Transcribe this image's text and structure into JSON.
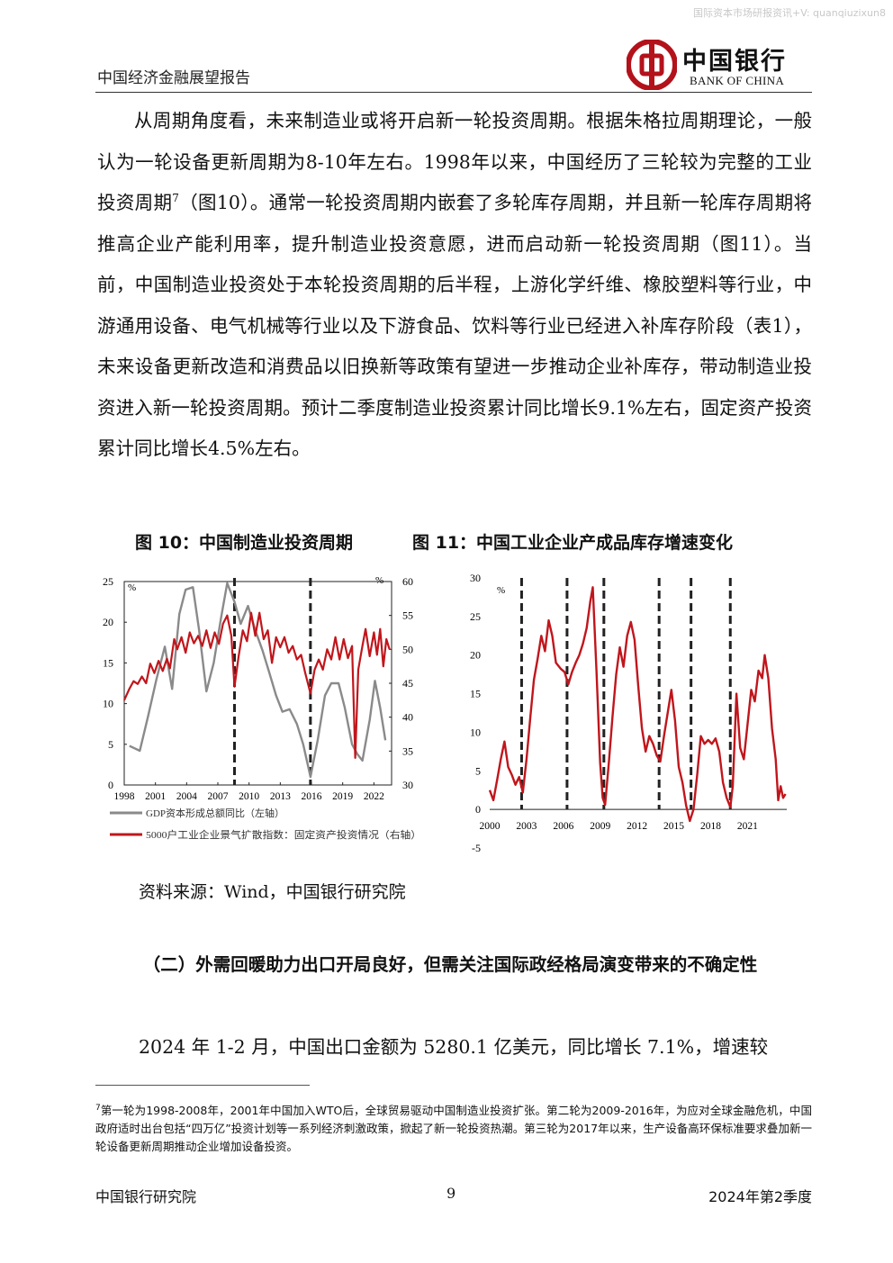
{
  "header": {
    "watermark": "国际资本市场研报资讯+V: quanqiuzixun8",
    "title": "中国经济金融展望报告",
    "logo_cn": "中国银行",
    "logo_en": "BANK OF CHINA"
  },
  "body": {
    "para1": "从周期角度看，未来制造业或将开启新一轮投资周期。根据朱格拉周期理论，一般认为一轮设备更新周期为8-10年左右。1998年以来，中国经历了三轮较为完整的工业投资周期",
    "para1_sup": "7",
    "para1_rest": "（图10）。通常一轮投资周期内嵌套了多轮库存周期，并且新一轮库存周期将推高企业产能利用率，提升制造业投资意愿，进而启动新一轮投资周期（图11）。当前，中国制造业投资处于本轮投资周期的后半程，上游化学纤维、橡胶塑料等行业，中游通用设备、电气机械等行业以及下游食品、饮料等行业已经进入补库存阶段（表1），未来设备更新改造和消费品以旧换新等政策有望进一步推动企业补库存，带动制造业投资进入新一轮投资周期。预计二季度制造业投资累计同比增长9.1%左右，固定资产投资累计同比增长4.5%左右。"
  },
  "figures": {
    "fig10_title": "图 10：中国制造业投资周期",
    "fig11_title": "图 11：中国工业企业产成品库存增速变化",
    "source": "资料来源：Wind，中国银行研究院"
  },
  "section": {
    "heading": "（二）外需回暖助力出口开局良好，但需关注国际政经格局演变带来的不确定性",
    "para2": "2024 年 1-2 月，中国出口金额为 5280.1 亿美元，同比增长 7.1%，增速较"
  },
  "footnote": {
    "mark": "7",
    "text": "第一轮为1998-2008年，2001年中国加入WTO后，全球贸易驱动中国制造业投资扩张。第二轮为2009-2016年，为应对全球金融危机，中国政府适时出台包括“四万亿”投资计划等一系列经济刺激政策，掀起了新一轮投资热潮。第三轮为2017年以来，生产设备高环保标准要求叠加新一轮设备更新周期推动企业增加设备投资。"
  },
  "footer": {
    "left": "中国银行研究院",
    "page": "9",
    "right": "2024年第2季度"
  },
  "colors": {
    "red": "#c0161c",
    "gray": "#8a8a8a"
  },
  "chart_data": [
    {
      "type": "line",
      "id": "fig10",
      "x_ticks": [
        "1998",
        "2001",
        "2004",
        "2007",
        "2010",
        "2013",
        "2016",
        "2019",
        "2022"
      ],
      "y_left_ticks": [
        "0",
        "5",
        "10",
        "15",
        "20",
        "25"
      ],
      "y_right_ticks": [
        "30",
        "35",
        "40",
        "45",
        "50",
        "55",
        "60"
      ],
      "y_left_unit": "%",
      "y_right_unit": "%",
      "ylim_left": [
        0,
        25
      ],
      "ylim_right": [
        30,
        60
      ],
      "xlim": [
        1998,
        2023.7
      ],
      "cycle_lines": [
        2008.6,
        2015.9
      ],
      "series": [
        {
          "name": "GDP资本形成总额同比（左轴）",
          "axis": "left",
          "color": "#8a8a8a",
          "points": [
            [
              1998.5,
              4.8
            ],
            [
              1999.5,
              4.2
            ],
            [
              2000.3,
              8.5
            ],
            [
              2001.1,
              13
            ],
            [
              2001.9,
              17
            ],
            [
              2002.6,
              11.8
            ],
            [
              2003.3,
              21
            ],
            [
              2003.9,
              24.0
            ],
            [
              2004.6,
              24.3
            ],
            [
              2005.2,
              19
            ],
            [
              2005.9,
              11.5
            ],
            [
              2006.6,
              15
            ],
            [
              2007.3,
              20.5
            ],
            [
              2007.9,
              24.8
            ],
            [
              2008.6,
              22.5
            ],
            [
              2009.2,
              19.8
            ],
            [
              2009.9,
              22
            ],
            [
              2010.6,
              19
            ],
            [
              2011.3,
              16.5
            ],
            [
              2011.9,
              14
            ],
            [
              2012.6,
              11
            ],
            [
              2013.2,
              9
            ],
            [
              2013.9,
              9.3
            ],
            [
              2014.6,
              7.5
            ],
            [
              2015.2,
              5
            ],
            [
              2015.9,
              1.0
            ],
            [
              2016.6,
              5.5
            ],
            [
              2017.3,
              11
            ],
            [
              2017.9,
              12.5
            ],
            [
              2018.6,
              12.5
            ],
            [
              2019.2,
              9.5
            ],
            [
              2019.9,
              5
            ],
            [
              2020.4,
              3.8
            ],
            [
              2020.9,
              3.0
            ],
            [
              2021.6,
              8
            ],
            [
              2022.1,
              12.8
            ],
            [
              2022.6,
              9.5
            ],
            [
              2023.1,
              5.5
            ]
          ]
        },
        {
          "name": "5000户工业企业景气扩散指数：固定资产投资情况（右轴）",
          "axis": "right",
          "color": "#c0161c",
          "points": [
            [
              1998.0,
              42.5
            ],
            [
              1998.5,
              44.2
            ],
            [
              1998.9,
              45.3
            ],
            [
              1999.3,
              44.9
            ],
            [
              1999.7,
              46.0
            ],
            [
              2000.1,
              45.0
            ],
            [
              2000.5,
              47.9
            ],
            [
              2000.9,
              46.5
            ],
            [
              2001.3,
              48.3
            ],
            [
              2001.7,
              46.8
            ],
            [
              2002.1,
              48.6
            ],
            [
              2002.4,
              47.2
            ],
            [
              2002.8,
              51.5
            ],
            [
              2003.1,
              50.0
            ],
            [
              2003.5,
              51.8
            ],
            [
              2003.9,
              49.5
            ],
            [
              2004.3,
              52.5
            ],
            [
              2004.7,
              50.9
            ],
            [
              2005.1,
              52.0
            ],
            [
              2005.5,
              50.5
            ],
            [
              2005.9,
              52.8
            ],
            [
              2006.3,
              50.2
            ],
            [
              2006.7,
              52.5
            ],
            [
              2007.1,
              50.8
            ],
            [
              2007.5,
              53.8
            ],
            [
              2007.9,
              55.0
            ],
            [
              2008.3,
              52.0
            ],
            [
              2008.6,
              44.5
            ],
            [
              2009.0,
              49.0
            ],
            [
              2009.4,
              52.8
            ],
            [
              2009.8,
              51.2
            ],
            [
              2010.2,
              55.4
            ],
            [
              2010.6,
              52.0
            ],
            [
              2011.0,
              55.4
            ],
            [
              2011.4,
              51.5
            ],
            [
              2011.8,
              52.8
            ],
            [
              2012.2,
              48.0
            ],
            [
              2012.6,
              51.8
            ],
            [
              2013.0,
              50.3
            ],
            [
              2013.4,
              51.8
            ],
            [
              2013.8,
              49.5
            ],
            [
              2014.2,
              50.5
            ],
            [
              2014.6,
              48.5
            ],
            [
              2015.0,
              49.2
            ],
            [
              2015.4,
              46.5
            ],
            [
              2015.9,
              43.5
            ],
            [
              2016.3,
              47.0
            ],
            [
              2016.7,
              48.5
            ],
            [
              2017.1,
              47.0
            ],
            [
              2017.5,
              50.0
            ],
            [
              2017.9,
              48.5
            ],
            [
              2018.3,
              51.8
            ],
            [
              2018.7,
              48.5
            ],
            [
              2019.1,
              51.5
            ],
            [
              2019.5,
              48.7
            ],
            [
              2019.9,
              50.5
            ],
            [
              2020.2,
              34.0
            ],
            [
              2020.5,
              47.0
            ],
            [
              2020.9,
              50.5
            ],
            [
              2021.2,
              53.0
            ],
            [
              2021.6,
              49.0
            ],
            [
              2022.0,
              52.5
            ],
            [
              2022.3,
              49.2
            ],
            [
              2022.6,
              53.0
            ],
            [
              2022.9,
              47.5
            ],
            [
              2023.2,
              51.5
            ],
            [
              2023.5,
              50.0
            ]
          ]
        }
      ],
      "legend": [
        "GDP资本形成总额同比（左轴）",
        "5000户工业企业景气扩散指数：固定资产投资情况（右轴）"
      ]
    },
    {
      "type": "line",
      "id": "fig11",
      "x_ticks": [
        "2000",
        "2003",
        "2006",
        "2009",
        "2012",
        "2015",
        "2018",
        "2021"
      ],
      "y_ticks": [
        "-5",
        "0",
        "5",
        "10",
        "15",
        "20",
        "25",
        "30"
      ],
      "y_unit": "%",
      "ylim": [
        -5,
        30
      ],
      "xlim": [
        2000,
        2024.2
      ],
      "cycle_lines": [
        2002.6,
        2006.3,
        2009.3,
        2013.8,
        2016.4,
        2019.6
      ],
      "series": [
        {
          "name": "",
          "color": "#c0161c",
          "points": [
            [
              2000.0,
              2.5
            ],
            [
              2000.3,
              1.2
            ],
            [
              2000.6,
              3.8
            ],
            [
              2000.9,
              6.5
            ],
            [
              2001.2,
              8.8
            ],
            [
              2001.5,
              5.5
            ],
            [
              2001.8,
              4.5
            ],
            [
              2002.1,
              3.2
            ],
            [
              2002.4,
              4.2
            ],
            [
              2002.7,
              2.2
            ],
            [
              2003.0,
              6.5
            ],
            [
              2003.3,
              11.8
            ],
            [
              2003.6,
              16.8
            ],
            [
              2003.9,
              19.5
            ],
            [
              2004.2,
              22.5
            ],
            [
              2004.5,
              20.5
            ],
            [
              2004.8,
              24.5
            ],
            [
              2005.1,
              22.5
            ],
            [
              2005.4,
              19.0
            ],
            [
              2005.8,
              18.2
            ],
            [
              2006.1,
              17.8
            ],
            [
              2006.4,
              16.2
            ],
            [
              2006.7,
              17.8
            ],
            [
              2007.0,
              19.0
            ],
            [
              2007.3,
              20.0
            ],
            [
              2007.6,
              21.5
            ],
            [
              2007.9,
              23.5
            ],
            [
              2008.2,
              27.0
            ],
            [
              2008.4,
              28.8
            ],
            [
              2008.7,
              18.0
            ],
            [
              2009.0,
              6.0
            ],
            [
              2009.2,
              1.5
            ],
            [
              2009.4,
              0.6
            ],
            [
              2009.7,
              6.0
            ],
            [
              2010.0,
              12.0
            ],
            [
              2010.3,
              17.5
            ],
            [
              2010.6,
              21.0
            ],
            [
              2010.9,
              18.5
            ],
            [
              2011.2,
              22.5
            ],
            [
              2011.5,
              24.3
            ],
            [
              2011.8,
              22.0
            ],
            [
              2012.1,
              16.0
            ],
            [
              2012.4,
              10.5
            ],
            [
              2012.7,
              7.5
            ],
            [
              2013.0,
              9.5
            ],
            [
              2013.3,
              8.5
            ],
            [
              2013.6,
              7.0
            ],
            [
              2013.9,
              6.2
            ],
            [
              2014.2,
              9.5
            ],
            [
              2014.5,
              12.5
            ],
            [
              2014.8,
              15.5
            ],
            [
              2015.1,
              11.5
            ],
            [
              2015.4,
              5.5
            ],
            [
              2015.7,
              3.5
            ],
            [
              2016.0,
              0.5
            ],
            [
              2016.3,
              -1.5
            ],
            [
              2016.6,
              0.0
            ],
            [
              2016.9,
              4.5
            ],
            [
              2017.2,
              9.5
            ],
            [
              2017.5,
              8.5
            ],
            [
              2017.8,
              9.0
            ],
            [
              2018.1,
              8.5
            ],
            [
              2018.4,
              9.2
            ],
            [
              2018.7,
              7.5
            ],
            [
              2019.0,
              3.5
            ],
            [
              2019.3,
              1.5
            ],
            [
              2019.6,
              0.3
            ],
            [
              2019.8,
              3.0
            ],
            [
              2020.1,
              15.0
            ],
            [
              2020.4,
              8.0
            ],
            [
              2020.7,
              6.5
            ],
            [
              2021.0,
              11.0
            ],
            [
              2021.3,
              15.5
            ],
            [
              2021.6,
              14.0
            ],
            [
              2021.9,
              18.0
            ],
            [
              2022.2,
              17.0
            ],
            [
              2022.4,
              20.0
            ],
            [
              2022.7,
              17.0
            ],
            [
              2023.0,
              10.5
            ],
            [
              2023.3,
              6.5
            ],
            [
              2023.5,
              1.2
            ],
            [
              2023.7,
              3.0
            ],
            [
              2023.9,
              1.5
            ],
            [
              2024.1,
              2.0
            ]
          ]
        }
      ]
    }
  ]
}
